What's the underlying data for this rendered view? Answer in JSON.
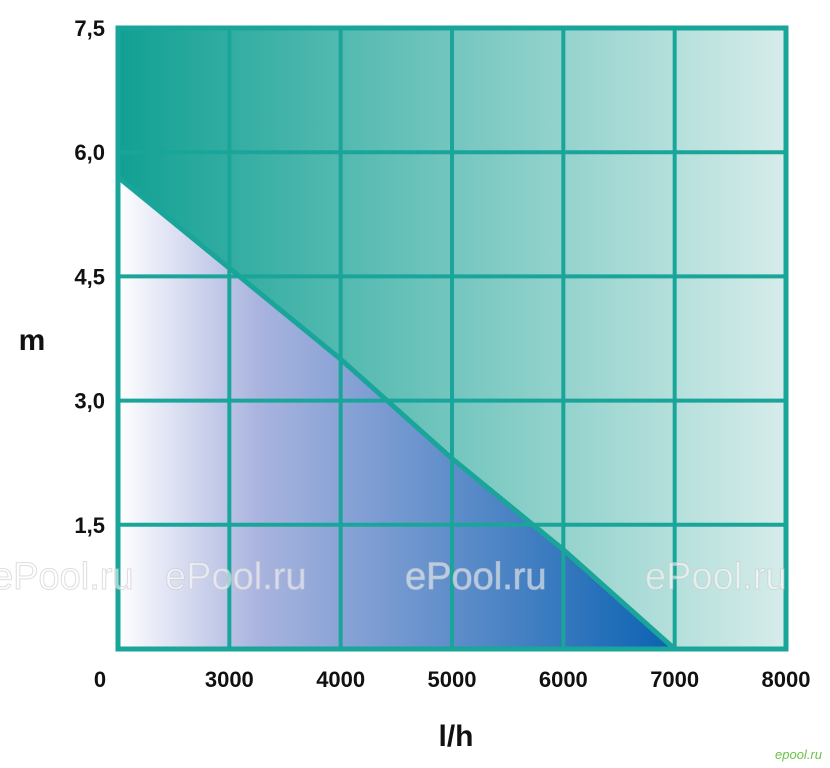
{
  "chart_data": {
    "type": "area",
    "title": "",
    "xlabel": "l/h",
    "ylabel": "m",
    "x_ticks": [
      "3000",
      "4000",
      "5000",
      "6000",
      "7000",
      "8000"
    ],
    "x_tick_values": [
      3000,
      4000,
      5000,
      6000,
      7000,
      8000
    ],
    "y_ticks": [
      "1,5",
      "3,0",
      "4,5",
      "6,0",
      "7,5"
    ],
    "y_tick_values": [
      1.5,
      3.0,
      4.5,
      6.0,
      7.5
    ],
    "origin_label": "0",
    "xlim": [
      2000,
      8000
    ],
    "ylim": [
      0,
      7.5
    ],
    "grid": true,
    "series": [
      {
        "x": [
          2000,
          3000,
          4000,
          5000,
          6000,
          7000
        ],
        "y": [
          5.7,
          4.6,
          3.5,
          2.3,
          1.2,
          0
        ]
      }
    ],
    "colors": {
      "frame": "#1aa59a",
      "upper_dark": "#11a093",
      "upper_light": "#d6ecea",
      "lower_light": "#ffffff",
      "lower_dark": "#0a62b2"
    }
  },
  "watermarks": [
    "ePool.ru",
    "ePool.ru",
    "ePool.ru",
    "ePool.ru"
  ],
  "site_mark": "epool.ru"
}
